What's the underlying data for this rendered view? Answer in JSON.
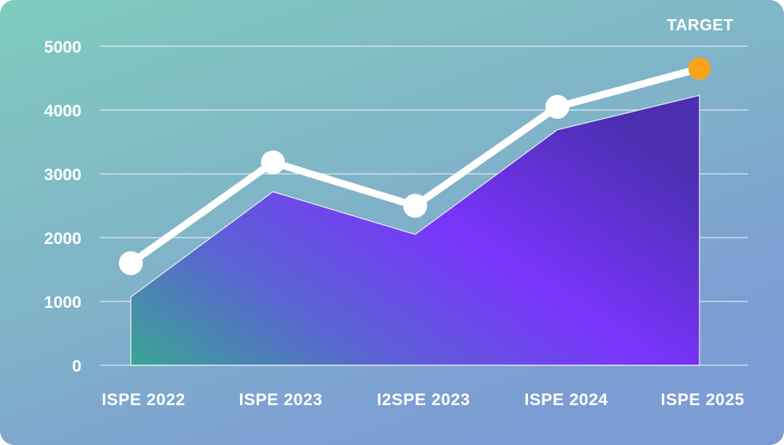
{
  "chart_data": {
    "type": "line",
    "categories": [
      "ISPE 2022",
      "ISPE 2023",
      "I2SPE 2023",
      "ISPE 2024",
      "ISPE 2025"
    ],
    "series": [
      {
        "type": "line",
        "values": [
          1600,
          3180,
          2500,
          4050,
          4650
        ],
        "color": "#ffffff"
      },
      {
        "type": "area",
        "values": [
          1070,
          2720,
          2050,
          3690,
          4230
        ]
      }
    ],
    "yticks": [
      0,
      1000,
      2000,
      3000,
      4000,
      5000
    ],
    "ylim": [
      0,
      5000
    ],
    "grid": true,
    "annotation": {
      "text": "TARGET",
      "category": "ISPE 2025",
      "value": 4650,
      "color": "#f9a21a"
    },
    "area_gradient": [
      "#3aa592",
      "#5a63d3",
      "#7a34fb",
      "#4b2fb0"
    ]
  }
}
